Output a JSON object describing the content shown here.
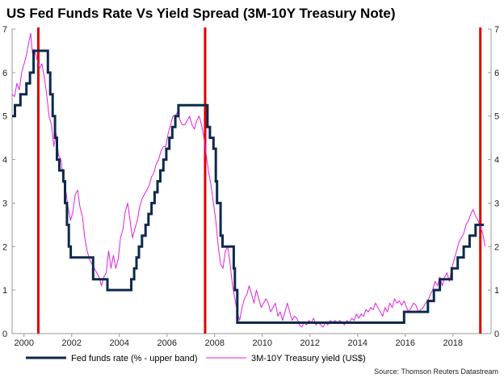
{
  "chart_data": {
    "type": "line",
    "title": "US Fed Funds Rate Vs Yield Spread (3M-10Y Treasury Note)",
    "source": "Source: Thomson Reuters Datastream",
    "xlim": [
      1999.5,
      2019.6
    ],
    "ylim": [
      0,
      7
    ],
    "x_ticks": [
      2000,
      2002,
      2004,
      2006,
      2008,
      2010,
      2012,
      2014,
      2016,
      2018
    ],
    "x_tick_labels": [
      "2000",
      "2002",
      "2004",
      "2006",
      "2008",
      "2010",
      "2012",
      "2014",
      "2016",
      "2018"
    ],
    "y_ticks": [
      0,
      1,
      2,
      3,
      4,
      5,
      6,
      7
    ],
    "y_tick_labels": [
      "0",
      "1",
      "2",
      "3",
      "4",
      "5",
      "6",
      "7"
    ],
    "vertical_markers": [
      2000.6,
      2007.6,
      2019.15
    ],
    "colors": {
      "fed_funds": "#0d2a4c",
      "spread": "#e020e0",
      "markers": "#e00000",
      "axis": "#999999"
    },
    "series": [
      {
        "name": "Fed funds rate (% - upper band)",
        "style": "step",
        "points": [
          [
            1999.5,
            5.0
          ],
          [
            1999.62,
            5.25
          ],
          [
            1999.85,
            5.5
          ],
          [
            2000.1,
            5.75
          ],
          [
            2000.25,
            6.0
          ],
          [
            2000.4,
            6.5
          ],
          [
            2001.0,
            6.0
          ],
          [
            2001.1,
            5.5
          ],
          [
            2001.2,
            5.0
          ],
          [
            2001.3,
            4.5
          ],
          [
            2001.38,
            4.0
          ],
          [
            2001.48,
            3.75
          ],
          [
            2001.65,
            3.5
          ],
          [
            2001.72,
            3.0
          ],
          [
            2001.8,
            2.5
          ],
          [
            2001.88,
            2.0
          ],
          [
            2001.96,
            1.75
          ],
          [
            2002.9,
            1.25
          ],
          [
            2003.5,
            1.0
          ],
          [
            2004.5,
            1.25
          ],
          [
            2004.62,
            1.5
          ],
          [
            2004.72,
            1.75
          ],
          [
            2004.82,
            2.0
          ],
          [
            2004.95,
            2.25
          ],
          [
            2005.1,
            2.5
          ],
          [
            2005.22,
            2.75
          ],
          [
            2005.35,
            3.0
          ],
          [
            2005.48,
            3.25
          ],
          [
            2005.6,
            3.5
          ],
          [
            2005.72,
            3.75
          ],
          [
            2005.85,
            4.0
          ],
          [
            2005.97,
            4.25
          ],
          [
            2006.1,
            4.5
          ],
          [
            2006.22,
            4.75
          ],
          [
            2006.35,
            5.0
          ],
          [
            2006.48,
            5.25
          ],
          [
            2007.7,
            4.75
          ],
          [
            2007.8,
            4.5
          ],
          [
            2007.95,
            4.25
          ],
          [
            2008.05,
            3.5
          ],
          [
            2008.1,
            3.0
          ],
          [
            2008.25,
            2.25
          ],
          [
            2008.33,
            2.0
          ],
          [
            2008.8,
            1.5
          ],
          [
            2008.85,
            1.0
          ],
          [
            2008.95,
            0.25
          ],
          [
            2015.95,
            0.5
          ],
          [
            2016.95,
            0.75
          ],
          [
            2017.2,
            1.0
          ],
          [
            2017.45,
            1.25
          ],
          [
            2017.95,
            1.5
          ],
          [
            2018.2,
            1.75
          ],
          [
            2018.45,
            2.0
          ],
          [
            2018.7,
            2.25
          ],
          [
            2018.95,
            2.5
          ],
          [
            2019.3,
            2.5
          ]
        ]
      },
      {
        "name": "3M-10Y Treasury yield (US$)",
        "style": "line",
        "points": [
          [
            1999.5,
            5.5
          ],
          [
            1999.6,
            5.45
          ],
          [
            1999.7,
            5.75
          ],
          [
            1999.8,
            5.6
          ],
          [
            1999.9,
            6.0
          ],
          [
            2000.0,
            6.2
          ],
          [
            2000.1,
            6.4
          ],
          [
            2000.2,
            6.7
          ],
          [
            2000.28,
            6.9
          ],
          [
            2000.35,
            6.45
          ],
          [
            2000.45,
            6.5
          ],
          [
            2000.55,
            6.3
          ],
          [
            2000.65,
            6.1
          ],
          [
            2000.75,
            6.2
          ],
          [
            2000.85,
            5.9
          ],
          [
            2000.95,
            5.5
          ],
          [
            2001.05,
            5.0
          ],
          [
            2001.15,
            4.8
          ],
          [
            2001.25,
            4.3
          ],
          [
            2001.35,
            4.6
          ],
          [
            2001.45,
            4.1
          ],
          [
            2001.55,
            4.0
          ],
          [
            2001.65,
            3.5
          ],
          [
            2001.75,
            3.3
          ],
          [
            2001.85,
            2.9
          ],
          [
            2001.95,
            2.6
          ],
          [
            2002.05,
            2.8
          ],
          [
            2002.15,
            3.2
          ],
          [
            2002.25,
            3.3
          ],
          [
            2002.35,
            2.9
          ],
          [
            2002.45,
            2.7
          ],
          [
            2002.55,
            2.2
          ],
          [
            2002.65,
            1.9
          ],
          [
            2002.75,
            1.7
          ],
          [
            2002.85,
            1.6
          ],
          [
            2002.95,
            1.5
          ],
          [
            2003.05,
            1.4
          ],
          [
            2003.15,
            1.3
          ],
          [
            2003.25,
            1.1
          ],
          [
            2003.35,
            1.3
          ],
          [
            2003.45,
            1.4
          ],
          [
            2003.55,
            1.9
          ],
          [
            2003.65,
            1.5
          ],
          [
            2003.75,
            1.8
          ],
          [
            2003.85,
            1.5
          ],
          [
            2003.95,
            1.7
          ],
          [
            2004.05,
            2.2
          ],
          [
            2004.15,
            2.4
          ],
          [
            2004.25,
            2.8
          ],
          [
            2004.35,
            3.0
          ],
          [
            2004.45,
            2.6
          ],
          [
            2004.55,
            2.2
          ],
          [
            2004.65,
            2.4
          ],
          [
            2004.75,
            2.6
          ],
          [
            2004.85,
            2.9
          ],
          [
            2004.95,
            3.1
          ],
          [
            2005.05,
            3.2
          ],
          [
            2005.15,
            3.3
          ],
          [
            2005.25,
            3.4
          ],
          [
            2005.35,
            3.6
          ],
          [
            2005.45,
            3.7
          ],
          [
            2005.55,
            3.9
          ],
          [
            2005.65,
            4.0
          ],
          [
            2005.75,
            4.2
          ],
          [
            2005.85,
            4.3
          ],
          [
            2005.95,
            4.3
          ],
          [
            2006.05,
            4.6
          ],
          [
            2006.15,
            4.8
          ],
          [
            2006.25,
            5.0
          ],
          [
            2006.35,
            5.0
          ],
          [
            2006.45,
            5.1
          ],
          [
            2006.55,
            4.9
          ],
          [
            2006.65,
            4.8
          ],
          [
            2006.75,
            4.8
          ],
          [
            2006.85,
            4.9
          ],
          [
            2006.95,
            5.0
          ],
          [
            2007.05,
            4.8
          ],
          [
            2007.15,
            4.7
          ],
          [
            2007.25,
            4.9
          ],
          [
            2007.35,
            5.0
          ],
          [
            2007.45,
            4.8
          ],
          [
            2007.55,
            4.5
          ],
          [
            2007.65,
            4.1
          ],
          [
            2007.75,
            3.7
          ],
          [
            2007.85,
            3.4
          ],
          [
            2007.95,
            3.0
          ],
          [
            2008.05,
            2.6
          ],
          [
            2008.15,
            2.0
          ],
          [
            2008.25,
            1.6
          ],
          [
            2008.35,
            1.5
          ],
          [
            2008.45,
            1.9
          ],
          [
            2008.55,
            2.0
          ],
          [
            2008.65,
            1.6
          ],
          [
            2008.75,
            1.1
          ],
          [
            2008.85,
            0.8
          ],
          [
            2008.95,
            0.5
          ],
          [
            2009.05,
            0.3
          ],
          [
            2009.15,
            0.6
          ],
          [
            2009.25,
            0.8
          ],
          [
            2009.35,
            0.9
          ],
          [
            2009.45,
            1.1
          ],
          [
            2009.55,
            0.9
          ],
          [
            2009.65,
            0.7
          ],
          [
            2009.75,
            1.0
          ],
          [
            2009.85,
            0.8
          ],
          [
            2009.95,
            0.6
          ],
          [
            2010.05,
            0.7
          ],
          [
            2010.15,
            0.8
          ],
          [
            2010.25,
            0.7
          ],
          [
            2010.35,
            0.5
          ],
          [
            2010.45,
            0.6
          ],
          [
            2010.55,
            0.7
          ],
          [
            2010.65,
            0.4
          ],
          [
            2010.75,
            0.5
          ],
          [
            2010.85,
            0.3
          ],
          [
            2010.95,
            0.5
          ],
          [
            2011.05,
            0.7
          ],
          [
            2011.15,
            0.5
          ],
          [
            2011.25,
            0.3
          ],
          [
            2011.35,
            0.4
          ],
          [
            2011.45,
            0.35
          ],
          [
            2011.55,
            0.2
          ],
          [
            2011.65,
            0.15
          ],
          [
            2011.75,
            0.25
          ],
          [
            2011.85,
            0.2
          ],
          [
            2011.95,
            0.3
          ],
          [
            2012.05,
            0.25
          ],
          [
            2012.15,
            0.35
          ],
          [
            2012.25,
            0.2
          ],
          [
            2012.35,
            0.25
          ],
          [
            2012.45,
            0.2
          ],
          [
            2012.55,
            0.15
          ],
          [
            2012.65,
            0.25
          ],
          [
            2012.75,
            0.2
          ],
          [
            2012.85,
            0.3
          ],
          [
            2012.95,
            0.25
          ],
          [
            2013.05,
            0.3
          ],
          [
            2013.15,
            0.25
          ],
          [
            2013.25,
            0.3
          ],
          [
            2013.35,
            0.25
          ],
          [
            2013.45,
            0.2
          ],
          [
            2013.55,
            0.3
          ],
          [
            2013.65,
            0.25
          ],
          [
            2013.75,
            0.35
          ],
          [
            2013.85,
            0.3
          ],
          [
            2013.95,
            0.45
          ],
          [
            2014.05,
            0.35
          ],
          [
            2014.15,
            0.45
          ],
          [
            2014.25,
            0.4
          ],
          [
            2014.35,
            0.55
          ],
          [
            2014.45,
            0.5
          ],
          [
            2014.55,
            0.6
          ],
          [
            2014.65,
            0.55
          ],
          [
            2014.75,
            0.7
          ],
          [
            2014.85,
            0.6
          ],
          [
            2014.95,
            0.5
          ],
          [
            2015.05,
            0.4
          ],
          [
            2015.15,
            0.6
          ],
          [
            2015.25,
            0.5
          ],
          [
            2015.35,
            0.7
          ],
          [
            2015.45,
            0.6
          ],
          [
            2015.55,
            0.8
          ],
          [
            2015.65,
            0.7
          ],
          [
            2015.75,
            0.75
          ],
          [
            2015.85,
            0.65
          ],
          [
            2015.95,
            0.75
          ],
          [
            2016.05,
            0.6
          ],
          [
            2016.15,
            0.5
          ],
          [
            2016.25,
            0.6
          ],
          [
            2016.35,
            0.7
          ],
          [
            2016.45,
            0.65
          ],
          [
            2016.55,
            0.5
          ],
          [
            2016.65,
            0.55
          ],
          [
            2016.75,
            0.6
          ],
          [
            2016.85,
            0.7
          ],
          [
            2016.95,
            0.75
          ],
          [
            2017.05,
            0.9
          ],
          [
            2017.15,
            1.0
          ],
          [
            2017.25,
            1.2
          ],
          [
            2017.35,
            1.1
          ],
          [
            2017.45,
            1.3
          ],
          [
            2017.55,
            1.1
          ],
          [
            2017.65,
            1.3
          ],
          [
            2017.75,
            1.4
          ],
          [
            2017.85,
            1.2
          ],
          [
            2017.95,
            1.5
          ],
          [
            2018.05,
            1.7
          ],
          [
            2018.15,
            1.9
          ],
          [
            2018.25,
            2.1
          ],
          [
            2018.35,
            2.2
          ],
          [
            2018.45,
            2.3
          ],
          [
            2018.55,
            2.5
          ],
          [
            2018.65,
            2.6
          ],
          [
            2018.75,
            2.75
          ],
          [
            2018.85,
            2.85
          ],
          [
            2018.95,
            2.7
          ],
          [
            2019.05,
            2.6
          ],
          [
            2019.15,
            2.45
          ],
          [
            2019.25,
            2.3
          ],
          [
            2019.35,
            2.0
          ]
        ]
      }
    ]
  }
}
